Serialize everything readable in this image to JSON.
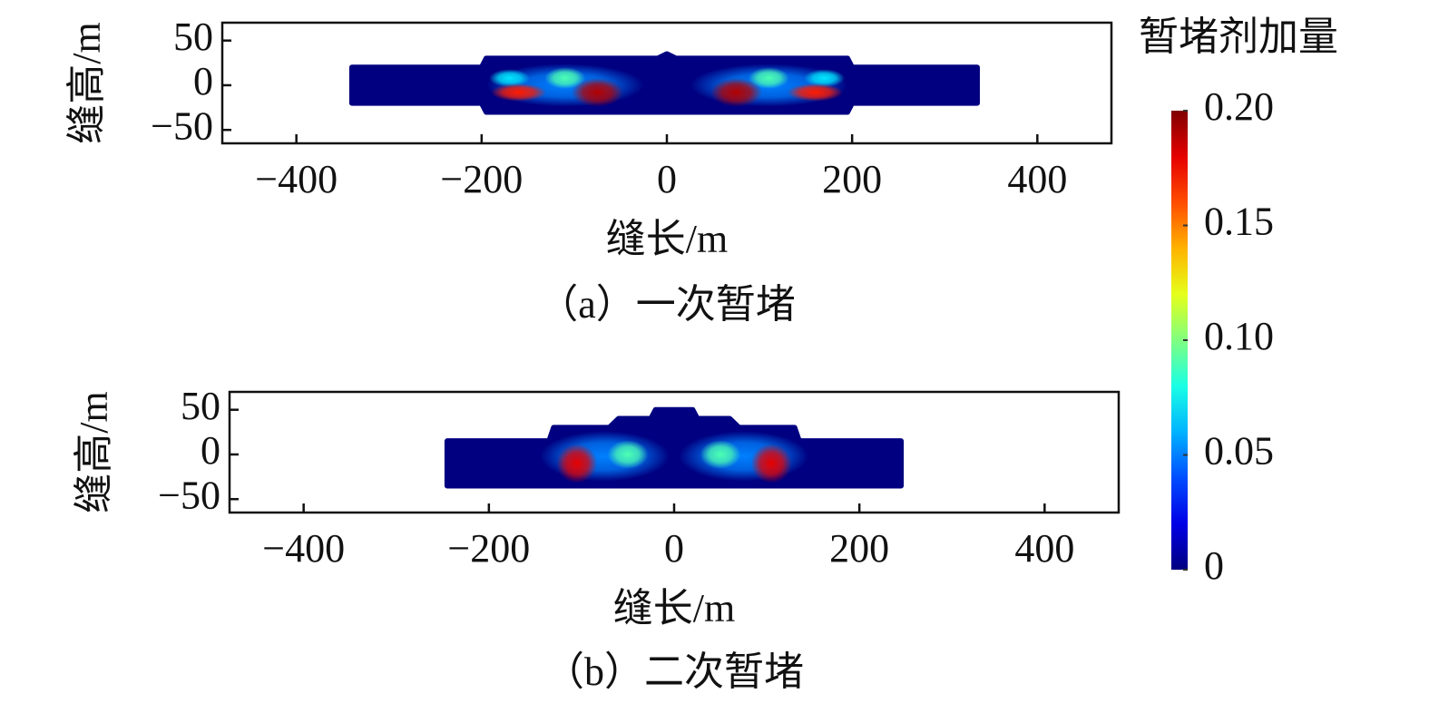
{
  "chart_data": [
    {
      "type": "heatmap",
      "caption": "（a）一次暂堵",
      "xlabel": "缝长/m",
      "ylabel": "缝高/m",
      "xlim": [
        -480,
        480
      ],
      "ylim": [
        -65,
        70
      ],
      "xticks": [
        {
          "value": -400,
          "label": "−400"
        },
        {
          "value": -200,
          "label": "−200"
        },
        0,
        200,
        400
      ],
      "yticks": [
        {
          "value": -50,
          "label": "−50"
        },
        0,
        50
      ],
      "outline": {
        "x": [
          -340,
          -200,
          -195,
          -10,
          0,
          10,
          195,
          200,
          335
        ],
        "top": [
          20,
          20,
          30,
          30,
          35,
          30,
          30,
          20,
          20
        ],
        "bottom": [
          -20,
          -20,
          -30,
          -30,
          -30,
          -30,
          -30,
          -20,
          -20
        ]
      },
      "hotspots": [
        {
          "x": -110,
          "y": 0,
          "rx": 85,
          "ry": 24,
          "value": 0.05
        },
        {
          "x": 110,
          "y": 0,
          "rx": 85,
          "ry": 24,
          "value": 0.05
        },
        {
          "x": -170,
          "y": 8,
          "rx": 22,
          "ry": 10,
          "value": 0.07
        },
        {
          "x": 170,
          "y": 8,
          "rx": 22,
          "ry": 10,
          "value": 0.07
        },
        {
          "x": -110,
          "y": 8,
          "rx": 22,
          "ry": 12,
          "value": 0.09
        },
        {
          "x": 110,
          "y": 8,
          "rx": 22,
          "ry": 12,
          "value": 0.09
        },
        {
          "x": -160,
          "y": -8,
          "rx": 30,
          "ry": 10,
          "value": 0.17
        },
        {
          "x": 160,
          "y": -8,
          "rx": 30,
          "ry": 10,
          "value": 0.17
        },
        {
          "x": -75,
          "y": -8,
          "rx": 28,
          "ry": 16,
          "value": 0.19
        },
        {
          "x": 75,
          "y": -8,
          "rx": 28,
          "ry": 16,
          "value": 0.19
        }
      ]
    },
    {
      "type": "heatmap",
      "caption": "（b）二次暂堵",
      "xlabel": "缝长/m",
      "ylabel": "缝高/m",
      "xlim": [
        -480,
        480
      ],
      "ylim": [
        -65,
        70
      ],
      "xticks": [
        {
          "value": -400,
          "label": "−400"
        },
        {
          "value": -200,
          "label": "−200"
        },
        0,
        200,
        400
      ],
      "yticks": [
        {
          "value": -50,
          "label": "−50"
        },
        0,
        50
      ],
      "outline": {
        "x": [
          -245,
          -135,
          -130,
          -70,
          -60,
          -25,
          -20,
          20,
          25,
          60,
          70,
          130,
          135,
          245
        ],
        "top": [
          15,
          15,
          30,
          30,
          40,
          40,
          50,
          50,
          40,
          40,
          30,
          30,
          15,
          15
        ],
        "bottom": [
          -35,
          -35,
          -35,
          -35,
          -35,
          -35,
          -35,
          -35,
          -35,
          -35,
          -35,
          -35,
          -35,
          -35
        ]
      },
      "hotspots": [
        {
          "x": -75,
          "y": -2,
          "rx": 70,
          "ry": 28,
          "value": 0.05
        },
        {
          "x": 75,
          "y": -2,
          "rx": 70,
          "ry": 28,
          "value": 0.05
        },
        {
          "x": -50,
          "y": 0,
          "rx": 22,
          "ry": 16,
          "value": 0.09
        },
        {
          "x": 50,
          "y": 0,
          "rx": 22,
          "ry": 16,
          "value": 0.09
        },
        {
          "x": -105,
          "y": -10,
          "rx": 22,
          "ry": 22,
          "value": 0.18
        },
        {
          "x": 105,
          "y": -10,
          "rx": 22,
          "ry": 22,
          "value": 0.18
        }
      ]
    }
  ],
  "colorbar": {
    "title": "暂堵剂加量",
    "colormap": "jet",
    "clim": [
      0,
      0.2
    ],
    "ticks": [
      0,
      0.05,
      {
        "value": 0.1,
        "label": "0.10"
      },
      0.15,
      {
        "value": 0.2,
        "label": "0.20"
      }
    ]
  }
}
